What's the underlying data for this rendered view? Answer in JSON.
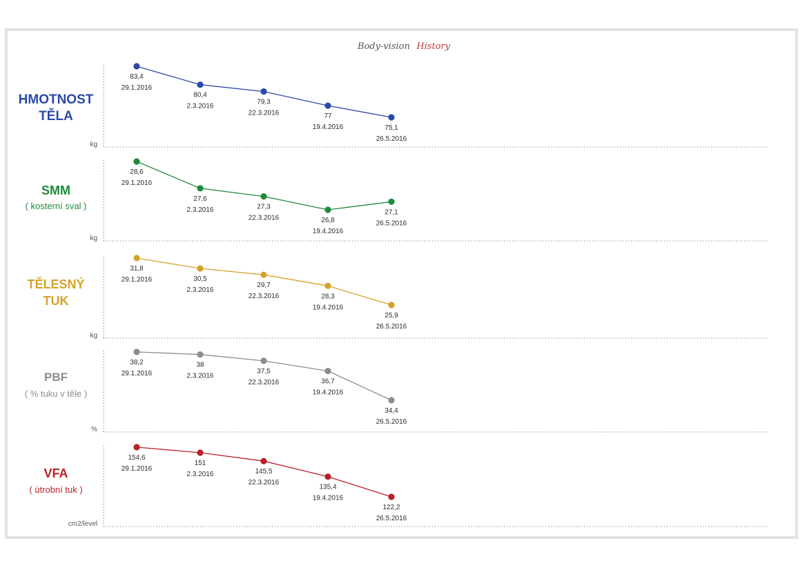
{
  "page_title": {
    "part1": "Body-vision",
    "part2": "History"
  },
  "chart_data": [
    {
      "type": "line",
      "title": "HMOTNOST TĚLA",
      "title_lines": [
        "HMOTNOST",
        "TĚLA"
      ],
      "subtitle": "",
      "unit": "kg",
      "color": "#2b49a8",
      "x": [
        "29.1.2016",
        "2.3.2016",
        "22.3.2016",
        "19.4.2016",
        "26.5.2016"
      ],
      "values": [
        83.4,
        80.4,
        79.3,
        77,
        75.1
      ],
      "value_labels": [
        "83,4",
        "80,4",
        "79,3",
        "77",
        "75,1"
      ]
    },
    {
      "type": "line",
      "title": "SMM",
      "title_lines": [
        "SMM"
      ],
      "subtitle": "( kosterní sval )",
      "unit": "kg",
      "color": "#1e8a3a",
      "x": [
        "29.1.2016",
        "2.3.2016",
        "22.3.2016",
        "19.4.2016",
        "26.5.2016"
      ],
      "values": [
        28.6,
        27.6,
        27.3,
        26.8,
        27.1
      ],
      "value_labels": [
        "28,6",
        "27,6",
        "27,3",
        "26,8",
        "27,1"
      ]
    },
    {
      "type": "line",
      "title": "TĚLESNÝ TUK",
      "title_lines": [
        "TĚLESNÝ",
        "TUK"
      ],
      "subtitle": "",
      "unit": "kg",
      "color": "#d4a22a",
      "x": [
        "29.1.2016",
        "2.3.2016",
        "22.3.2016",
        "19.4.2016",
        "26.5.2016"
      ],
      "values": [
        31.8,
        30.5,
        29.7,
        28.3,
        25.9
      ],
      "value_labels": [
        "31,8",
        "30,5",
        "29,7",
        "28,3",
        "25,9"
      ]
    },
    {
      "type": "line",
      "title": "PBF",
      "title_lines": [
        "PBF"
      ],
      "subtitle": "( % tuku v těle )",
      "unit": "%",
      "color": "#8c8c8c",
      "x": [
        "29.1.2016",
        "2.3.2016",
        "22.3.2016",
        "19.4.2016",
        "26.5.2016"
      ],
      "values": [
        38.2,
        38,
        37.5,
        36.7,
        34.4
      ],
      "value_labels": [
        "38,2",
        "38",
        "37,5",
        "36,7",
        "34,4"
      ]
    },
    {
      "type": "line",
      "title": "VFA",
      "title_lines": [
        "VFA"
      ],
      "subtitle": "( útrobní tuk )",
      "unit": "cm2/level",
      "color": "#b8222a",
      "x": [
        "29.1.2016",
        "2.3.2016",
        "22.3.2016",
        "19.4.2016",
        "26.5.2016"
      ],
      "values": [
        154.6,
        151,
        145.5,
        135.4,
        122.2
      ],
      "value_labels": [
        "154,6",
        "151",
        "145,5",
        "135,4",
        "122,2"
      ]
    }
  ]
}
